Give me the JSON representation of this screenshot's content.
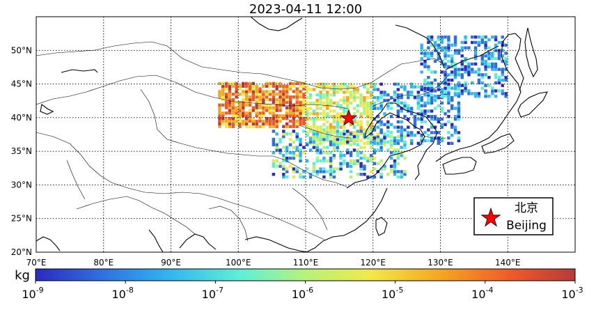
{
  "title": "2023-04-11 12:00",
  "map": {
    "lon_range": [
      70,
      150
    ],
    "lat_range": [
      20,
      55
    ],
    "lon_ticks": [
      "70°E",
      "80°E",
      "90°E",
      "100°E",
      "110°E",
      "120°E",
      "130°E",
      "140°E"
    ],
    "lat_ticks": [
      "20°N",
      "25°N",
      "30°N",
      "35°N",
      "40°N",
      "45°N",
      "50°N"
    ],
    "grid": "dotted",
    "marker": {
      "name": "Beijing",
      "lon": 116.4,
      "lat": 39.9,
      "symbol": "red-star"
    }
  },
  "legend": {
    "label_cn": "北京",
    "label_en": "Beijing",
    "placement": "lower-right"
  },
  "colorbar": {
    "label": "kg",
    "scale": "log",
    "range": [
      1e-09,
      0.001
    ],
    "tick_labels": [
      "10-9",
      "10-8",
      "10-7",
      "10-6",
      "10-5",
      "10-4",
      "10-3"
    ],
    "colormap": "jet",
    "colors": [
      "#2b2bbf",
      "#2f6fe0",
      "#33b6f0",
      "#5ef0d6",
      "#b6f27a",
      "#f2e84a",
      "#f5a623",
      "#ef5a2a",
      "#b83a3a"
    ]
  },
  "plume_regions": [
    {
      "lon": [
        97,
        110
      ],
      "lat": [
        38.5,
        45
      ],
      "level": "high"
    },
    {
      "lon": [
        110,
        120
      ],
      "lat": [
        36,
        45
      ],
      "level": "medium"
    },
    {
      "lon": [
        105,
        125
      ],
      "lat": [
        31,
        38
      ],
      "level": "low-medium"
    },
    {
      "lon": [
        120,
        133
      ],
      "lat": [
        36,
        45
      ],
      "level": "low"
    },
    {
      "lon": [
        127,
        140
      ],
      "lat": [
        43,
        52
      ],
      "level": "low"
    }
  ]
}
